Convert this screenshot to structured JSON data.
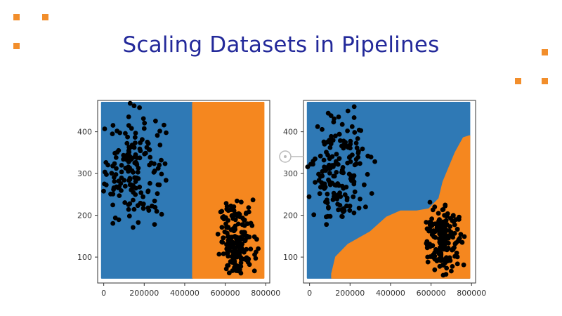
{
  "slide": {
    "title": "Scaling Datasets in Pipelines",
    "title_color": "#23299a",
    "accent_color": "#f28e2b",
    "bullet_count": 6
  },
  "colors": {
    "class_a": "#2f79b5",
    "class_b": "#f5871f",
    "points": "#000000",
    "axis": "#333333",
    "annotation": "#bbbbbb"
  },
  "chart_data": [
    {
      "type": "scatter",
      "title": "",
      "xlabel": "",
      "ylabel": "",
      "xlim": [
        -30000,
        820000
      ],
      "ylim": [
        38,
        475
      ],
      "xticks": [
        0,
        200000,
        400000,
        600000,
        800000
      ],
      "yticks": [
        100,
        200,
        300,
        400
      ],
      "grid": false,
      "legend": "none",
      "background": "decision regions of a classifier on unscaled features",
      "regions": [
        {
          "class": "A",
          "color": "#2f79b5",
          "polygon": [
            [
              -10000,
              50
            ],
            [
              440000,
              50
            ],
            [
              440000,
              470
            ],
            [
              -10000,
              470
            ]
          ]
        },
        {
          "class": "B",
          "color": "#f5871f",
          "polygon": [
            [
              440000,
              50
            ],
            [
              790000,
              50
            ],
            [
              790000,
              470
            ],
            [
              440000,
              470
            ]
          ]
        }
      ],
      "clusters": [
        {
          "cx": 140000,
          "cy": 310,
          "sx": 80000,
          "sy": 68,
          "n": 170,
          "xmin": -10000,
          "xmax": 330000,
          "ymin": 170,
          "ymax": 468
        },
        {
          "cx": 660000,
          "cy": 140,
          "sx": 45000,
          "sy": 45,
          "n": 170,
          "xmin": 560000,
          "xmax": 770000,
          "ymin": 55,
          "ymax": 245
        }
      ]
    },
    {
      "type": "scatter",
      "title": "",
      "xlabel": "",
      "ylabel": "",
      "xlim": [
        -30000,
        820000
      ],
      "ylim": [
        38,
        475
      ],
      "xticks": [
        0,
        200000,
        400000,
        600000,
        800000
      ],
      "yticks": [
        100,
        200,
        300,
        400
      ],
      "grid": false,
      "legend": "none",
      "background": "decision regions of a classifier on scaled features",
      "regions": [
        {
          "class": "A",
          "color": "#2f79b5",
          "polygon": [
            [
              -10000,
              50
            ],
            [
              790000,
              50
            ],
            [
              790000,
              470
            ],
            [
              -10000,
              470
            ]
          ]
        },
        {
          "class": "B",
          "color": "#f5871f",
          "polygon": [
            [
              110000,
              50
            ],
            [
              790000,
              50
            ],
            [
              790000,
              390
            ],
            [
              760000,
              385
            ],
            [
              720000,
              350
            ],
            [
              660000,
              280
            ],
            [
              640000,
              240
            ],
            [
              590000,
              215
            ],
            [
              530000,
              210
            ],
            [
              450000,
              210
            ],
            [
              380000,
              195
            ],
            [
              300000,
              160
            ],
            [
              190000,
              130
            ],
            [
              130000,
              100
            ],
            [
              110000,
              60
            ]
          ]
        }
      ],
      "clusters": [
        {
          "cx": 140000,
          "cy": 310,
          "sx": 80000,
          "sy": 68,
          "n": 170,
          "xmin": -10000,
          "xmax": 330000,
          "ymin": 170,
          "ymax": 468
        },
        {
          "cx": 660000,
          "cy": 140,
          "sx": 45000,
          "sy": 45,
          "n": 170,
          "xmin": 560000,
          "xmax": 770000,
          "ymin": 55,
          "ymax": 245
        }
      ]
    }
  ]
}
